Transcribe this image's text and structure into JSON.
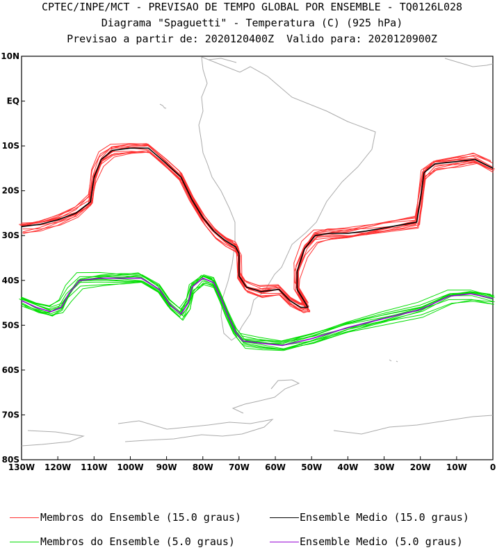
{
  "header": {
    "line1": "CPTEC/INPE/MCT - PREVISAO DE TEMPO GLOBAL POR ENSEMBLE - TQ0126L028",
    "line2": "Diagrama \"Spaguetti\" - Temperatura (C) (925 hPa)",
    "line3": "Previsao a partir de: 2020120400Z  Valido para: 2020120900Z"
  },
  "chart_data": {
    "type": "line",
    "title": "Diagrama \"Spaguetti\" - Temperatura (C) (925 hPa)",
    "xlim": [
      -130,
      0
    ],
    "ylim": [
      -80,
      10
    ],
    "x_ticks": [
      {
        "value": -130,
        "label": "130W"
      },
      {
        "value": -120,
        "label": "120W"
      },
      {
        "value": -110,
        "label": "110W"
      },
      {
        "value": -100,
        "label": "100W"
      },
      {
        "value": -90,
        "label": "90W"
      },
      {
        "value": -80,
        "label": "80W"
      },
      {
        "value": -70,
        "label": "70W"
      },
      {
        "value": -60,
        "label": "60W"
      },
      {
        "value": -50,
        "label": "50W"
      },
      {
        "value": -40,
        "label": "40W"
      },
      {
        "value": -30,
        "label": "30W"
      },
      {
        "value": -20,
        "label": "20W"
      },
      {
        "value": -10,
        "label": "10W"
      },
      {
        "value": 0,
        "label": "0"
      }
    ],
    "y_ticks": [
      {
        "value": 10,
        "label": "10N"
      },
      {
        "value": 0,
        "label": "EQ"
      },
      {
        "value": -10,
        "label": "10S"
      },
      {
        "value": -20,
        "label": "20S"
      },
      {
        "value": -30,
        "label": "30S"
      },
      {
        "value": -40,
        "label": "40S"
      },
      {
        "value": -50,
        "label": "50S"
      },
      {
        "value": -60,
        "label": "60S"
      },
      {
        "value": -70,
        "label": "70S"
      },
      {
        "value": -80,
        "label": "80S"
      }
    ],
    "series": [
      {
        "name": "Ensemble Medio (15.0 graus)",
        "color": "#000000",
        "points": [
          [
            -130,
            -28
          ],
          [
            -125,
            -27.5
          ],
          [
            -120,
            -26.5
          ],
          [
            -115,
            -25
          ],
          [
            -111,
            -22.5
          ],
          [
            -110,
            -17
          ],
          [
            -108,
            -13
          ],
          [
            -105,
            -11
          ],
          [
            -100,
            -10.5
          ],
          [
            -95,
            -10.5
          ],
          [
            -90,
            -14
          ],
          [
            -86,
            -17
          ],
          [
            -83,
            -22
          ],
          [
            -80,
            -26
          ],
          [
            -77,
            -29
          ],
          [
            -74,
            -31
          ],
          [
            -71,
            -32.5
          ],
          [
            -70,
            -34
          ],
          [
            -70,
            -39
          ],
          [
            -68,
            -41.5
          ],
          [
            -64,
            -42.5
          ],
          [
            -59,
            -42
          ],
          [
            -56,
            -44.5
          ],
          [
            -53,
            -46
          ],
          [
            -51,
            -46
          ],
          [
            -54,
            -42
          ],
          [
            -54,
            -38
          ],
          [
            -52,
            -33
          ],
          [
            -49,
            -30
          ],
          [
            -45,
            -29.5
          ],
          [
            -40,
            -29.5
          ],
          [
            -35,
            -29
          ],
          [
            -28,
            -28
          ],
          [
            -21,
            -27
          ],
          [
            -20,
            -22
          ],
          [
            -19,
            -16
          ],
          [
            -16,
            -14
          ],
          [
            -10,
            -13.5
          ],
          [
            -5,
            -13
          ],
          [
            0,
            -15
          ]
        ]
      },
      {
        "name": "Ensemble Medio (5.0 graus)",
        "color": "#9400d3",
        "points": [
          [
            -130,
            -44.5
          ],
          [
            -126,
            -46
          ],
          [
            -122,
            -47
          ],
          [
            -119,
            -46
          ],
          [
            -117,
            -43
          ],
          [
            -114,
            -40
          ],
          [
            -108,
            -39.5
          ],
          [
            -102,
            -39.5
          ],
          [
            -97,
            -39.5
          ],
          [
            -92,
            -42
          ],
          [
            -89,
            -45.5
          ],
          [
            -86,
            -47.5
          ],
          [
            -84,
            -45
          ],
          [
            -83,
            -41.5
          ],
          [
            -80,
            -39.5
          ],
          [
            -77,
            -40.5
          ],
          [
            -75,
            -44
          ],
          [
            -73,
            -48
          ],
          [
            -71,
            -51.5
          ],
          [
            -69,
            -53.5
          ],
          [
            -64,
            -54
          ],
          [
            -58,
            -54.5
          ],
          [
            -50,
            -53
          ],
          [
            -40,
            -50.5
          ],
          [
            -30,
            -48.5
          ],
          [
            -20,
            -46.5
          ],
          [
            -12,
            -43.5
          ],
          [
            -6,
            -43
          ],
          [
            0,
            -44
          ]
        ]
      }
    ],
    "legend": [
      {
        "label": "Membros do Ensemble (15.0 graus)",
        "color": "#ff3030"
      },
      {
        "label": "Ensemble Medio (15.0 graus)",
        "color": "#000000"
      },
      {
        "label": "Membros do Ensemble (5.0 graus)",
        "color": "#00dd00"
      },
      {
        "label": "Ensemble Medio (5.0 graus)",
        "color": "#9400d3"
      }
    ]
  }
}
